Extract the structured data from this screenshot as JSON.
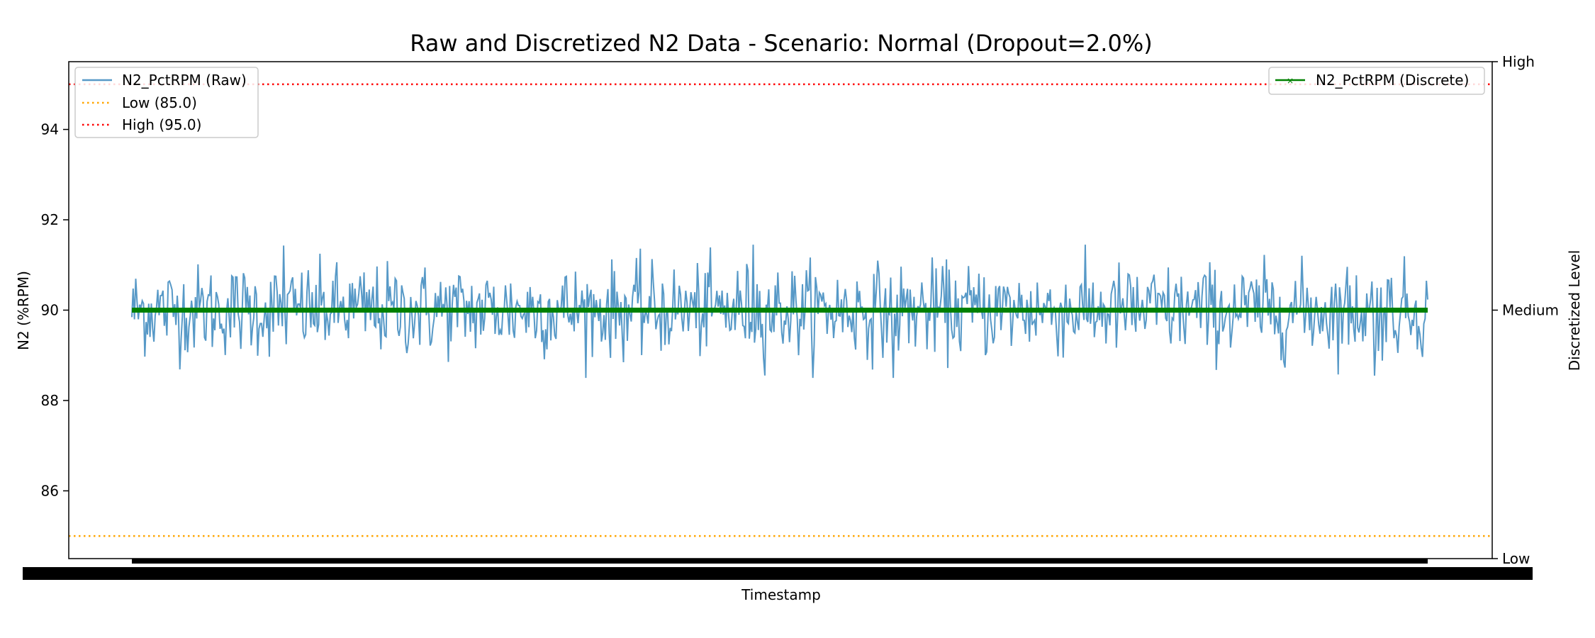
{
  "chart_data": {
    "type": "line",
    "title": "Raw and Discretized N2 Data - Scenario: Normal (Dropout=2.0%)",
    "xlabel": "Timestamp",
    "ylabel": "N2 (%RPM)",
    "y2label": "Discretized Level",
    "ylim": [
      84.5,
      95.5
    ],
    "yticks": [
      "86",
      "88",
      "90",
      "92",
      "94"
    ],
    "y2ticks": [
      "Low",
      "Medium",
      "High"
    ],
    "grid": false,
    "series": [
      {
        "name": "N2_PctRPM (Raw)",
        "color": "#1f77b4",
        "axis": "left",
        "style": "solid",
        "mean": 90.0,
        "typical_range": [
          89.2,
          90.8
        ],
        "extremes": [
          88.5,
          91.45
        ],
        "sample_count": 1000
      },
      {
        "name": "N2_PctRPM (Discrete)",
        "color": "#008000",
        "axis": "right",
        "style": "solid-x-markers",
        "value": "Medium"
      }
    ],
    "thresholds": [
      {
        "name": "Low (85.0)",
        "value": 85.0,
        "color": "#ffa500",
        "style": "dotted"
      },
      {
        "name": "High (95.0)",
        "value": 95.0,
        "color": "#ff0000",
        "style": "dotted"
      }
    ],
    "legends": [
      {
        "placement": "upper-left",
        "entries": [
          "N2_PctRPM (Raw)",
          "Low (85.0)",
          "High (95.0)"
        ]
      },
      {
        "placement": "upper-right",
        "entries": [
          "N2_PctRPM (Discrete)"
        ]
      }
    ]
  }
}
